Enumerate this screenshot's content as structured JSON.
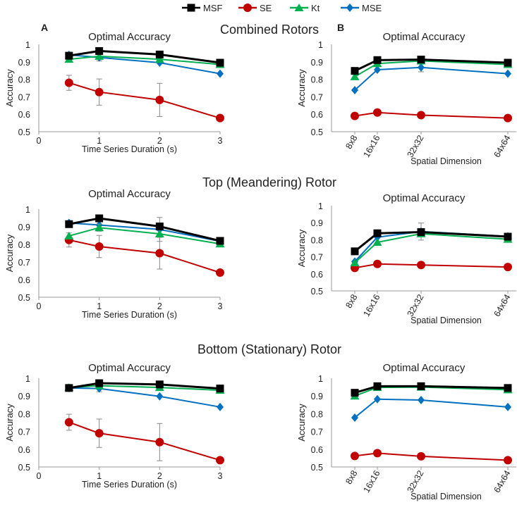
{
  "legend": [
    {
      "name": "MSF",
      "color": "#000000",
      "marker": "square"
    },
    {
      "name": "SE",
      "color": "#c00000",
      "marker": "circle"
    },
    {
      "name": "Kt",
      "color": "#00b050",
      "marker": "triangle"
    },
    {
      "name": "MSE",
      "color": "#0070c0",
      "marker": "diamond"
    }
  ],
  "panel_labels": {
    "A": "A",
    "B": "B"
  },
  "section_titles": [
    "Combined Rotors",
    "Top (Meandering) Rotor",
    "Bottom (Stationary) Rotor"
  ],
  "chart_data": [
    {
      "id": "combined-duration",
      "type": "line",
      "title": "Optimal Accuracy",
      "xlabel": "Time Series Duration (s)",
      "ylabel": "Accuracy",
      "x": [
        0.5,
        1,
        2,
        3
      ],
      "xticks": [
        0,
        1,
        2,
        3
      ],
      "xlim": [
        0,
        3
      ],
      "ylim": [
        0.5,
        1
      ],
      "yticks": [
        0.5,
        0.6,
        0.7,
        0.8,
        0.9,
        1
      ],
      "series": [
        {
          "name": "MSF",
          "values": [
            0.935,
            0.962,
            0.942,
            0.895
          ]
        },
        {
          "name": "SE",
          "values": [
            0.78,
            0.727,
            0.682,
            0.578
          ],
          "error": [
            0.043,
            0.075,
            0.095,
            0
          ]
        },
        {
          "name": "Kt",
          "values": [
            0.915,
            0.932,
            0.915,
            0.885
          ]
        },
        {
          "name": "MSE",
          "values": [
            0.94,
            0.925,
            0.895,
            0.832
          ],
          "error": [
            0,
            0.02,
            0,
            0
          ]
        }
      ]
    },
    {
      "id": "combined-spatial",
      "type": "line",
      "title": "Optimal Accuracy",
      "xlabel": "Spatial Dimension",
      "ylabel": "Accuracy",
      "categories": [
        "8x8",
        "16x16",
        "32x32",
        "64x64"
      ],
      "x": [
        8,
        16,
        32,
        64
      ],
      "ylim": [
        0.5,
        1
      ],
      "yticks": [
        0.5,
        0.6,
        0.7,
        0.8,
        0.9,
        1
      ],
      "series": [
        {
          "name": "MSF",
          "values": [
            0.848,
            0.91,
            0.913,
            0.895
          ]
        },
        {
          "name": "SE",
          "values": [
            0.59,
            0.61,
            0.595,
            0.578
          ]
        },
        {
          "name": "Kt",
          "values": [
            0.815,
            0.89,
            0.905,
            0.885
          ]
        },
        {
          "name": "MSE",
          "values": [
            0.738,
            0.855,
            0.868,
            0.832
          ],
          "error": [
            0,
            0,
            0.025,
            0
          ]
        }
      ]
    },
    {
      "id": "top-duration",
      "type": "line",
      "title": "Optimal Accuracy",
      "xlabel": "Time Series Duration (s)",
      "ylabel": "Accuracy",
      "x": [
        0.5,
        1,
        2,
        3
      ],
      "xticks": [
        0,
        1,
        2,
        3
      ],
      "xlim": [
        0,
        3
      ],
      "ylim": [
        0.5,
        1
      ],
      "yticks": [
        0.5,
        0.6,
        0.7,
        0.8,
        0.9,
        1
      ],
      "series": [
        {
          "name": "MSF",
          "values": [
            0.915,
            0.948,
            0.902,
            0.82
          ]
        },
        {
          "name": "SE",
          "values": [
            0.825,
            0.788,
            0.75,
            0.64
          ],
          "error": [
            0.04,
            0.063,
            0.09,
            0
          ]
        },
        {
          "name": "Kt",
          "values": [
            0.848,
            0.895,
            0.86,
            0.803
          ],
          "error": [
            0,
            0.02,
            0,
            0
          ]
        },
        {
          "name": "MSE",
          "values": [
            0.922,
            0.91,
            0.885,
            0.818
          ],
          "error": [
            0,
            0,
            0.068,
            0
          ]
        }
      ]
    },
    {
      "id": "top-spatial",
      "type": "line",
      "title": "Optimal Accuracy",
      "xlabel": "Spatial Dimension",
      "ylabel": "Accuracy",
      "categories": [
        "8x8",
        "16x16",
        "32x32",
        "64x64"
      ],
      "x": [
        8,
        16,
        32,
        64
      ],
      "ylim": [
        0.5,
        1
      ],
      "yticks": [
        0.5,
        0.6,
        0.7,
        0.8,
        0.9,
        1
      ],
      "series": [
        {
          "name": "MSF",
          "values": [
            0.732,
            0.838,
            0.845,
            0.818
          ]
        },
        {
          "name": "SE",
          "values": [
            0.635,
            0.658,
            0.652,
            0.64
          ]
        },
        {
          "name": "Kt",
          "values": [
            0.665,
            0.785,
            0.835,
            0.803
          ]
        },
        {
          "name": "MSE",
          "values": [
            0.672,
            0.815,
            0.848,
            0.82
          ],
          "error": [
            0,
            0,
            0.05,
            0
          ]
        }
      ]
    },
    {
      "id": "bottom-duration",
      "type": "line",
      "title": "Optimal Accuracy",
      "xlabel": "Time Series Duration (s)",
      "ylabel": "Accuracy",
      "x": [
        0.5,
        1,
        2,
        3
      ],
      "xticks": [
        0,
        1,
        2,
        3
      ],
      "xlim": [
        0,
        3
      ],
      "ylim": [
        0.5,
        1
      ],
      "yticks": [
        0.5,
        0.6,
        0.7,
        0.8,
        0.9,
        1
      ],
      "series": [
        {
          "name": "MSF",
          "values": [
            0.945,
            0.972,
            0.965,
            0.942
          ]
        },
        {
          "name": "SE",
          "values": [
            0.752,
            0.69,
            0.64,
            0.538
          ],
          "error": [
            0.045,
            0.08,
            0.105,
            0
          ]
        },
        {
          "name": "Kt",
          "values": [
            0.948,
            0.958,
            0.948,
            0.932
          ]
        },
        {
          "name": "MSE",
          "values": [
            0.945,
            0.942,
            0.898,
            0.838
          ],
          "error": [
            0,
            0.018,
            0,
            0
          ]
        }
      ]
    },
    {
      "id": "bottom-spatial",
      "type": "line",
      "title": "Optimal Accuracy",
      "xlabel": "Spatial Dimension",
      "ylabel": "Accuracy",
      "categories": [
        "8x8",
        "16x16",
        "32x32",
        "64x64"
      ],
      "x": [
        8,
        16,
        32,
        64
      ],
      "ylim": [
        0.5,
        1
      ],
      "yticks": [
        0.5,
        0.6,
        0.7,
        0.8,
        0.9,
        1
      ],
      "series": [
        {
          "name": "MSF",
          "values": [
            0.918,
            0.955,
            0.955,
            0.945
          ]
        },
        {
          "name": "SE",
          "values": [
            0.562,
            0.578,
            0.56,
            0.538
          ]
        },
        {
          "name": "Kt",
          "values": [
            0.9,
            0.948,
            0.95,
            0.935
          ]
        },
        {
          "name": "MSE",
          "values": [
            0.778,
            0.882,
            0.877,
            0.838
          ]
        }
      ]
    }
  ]
}
